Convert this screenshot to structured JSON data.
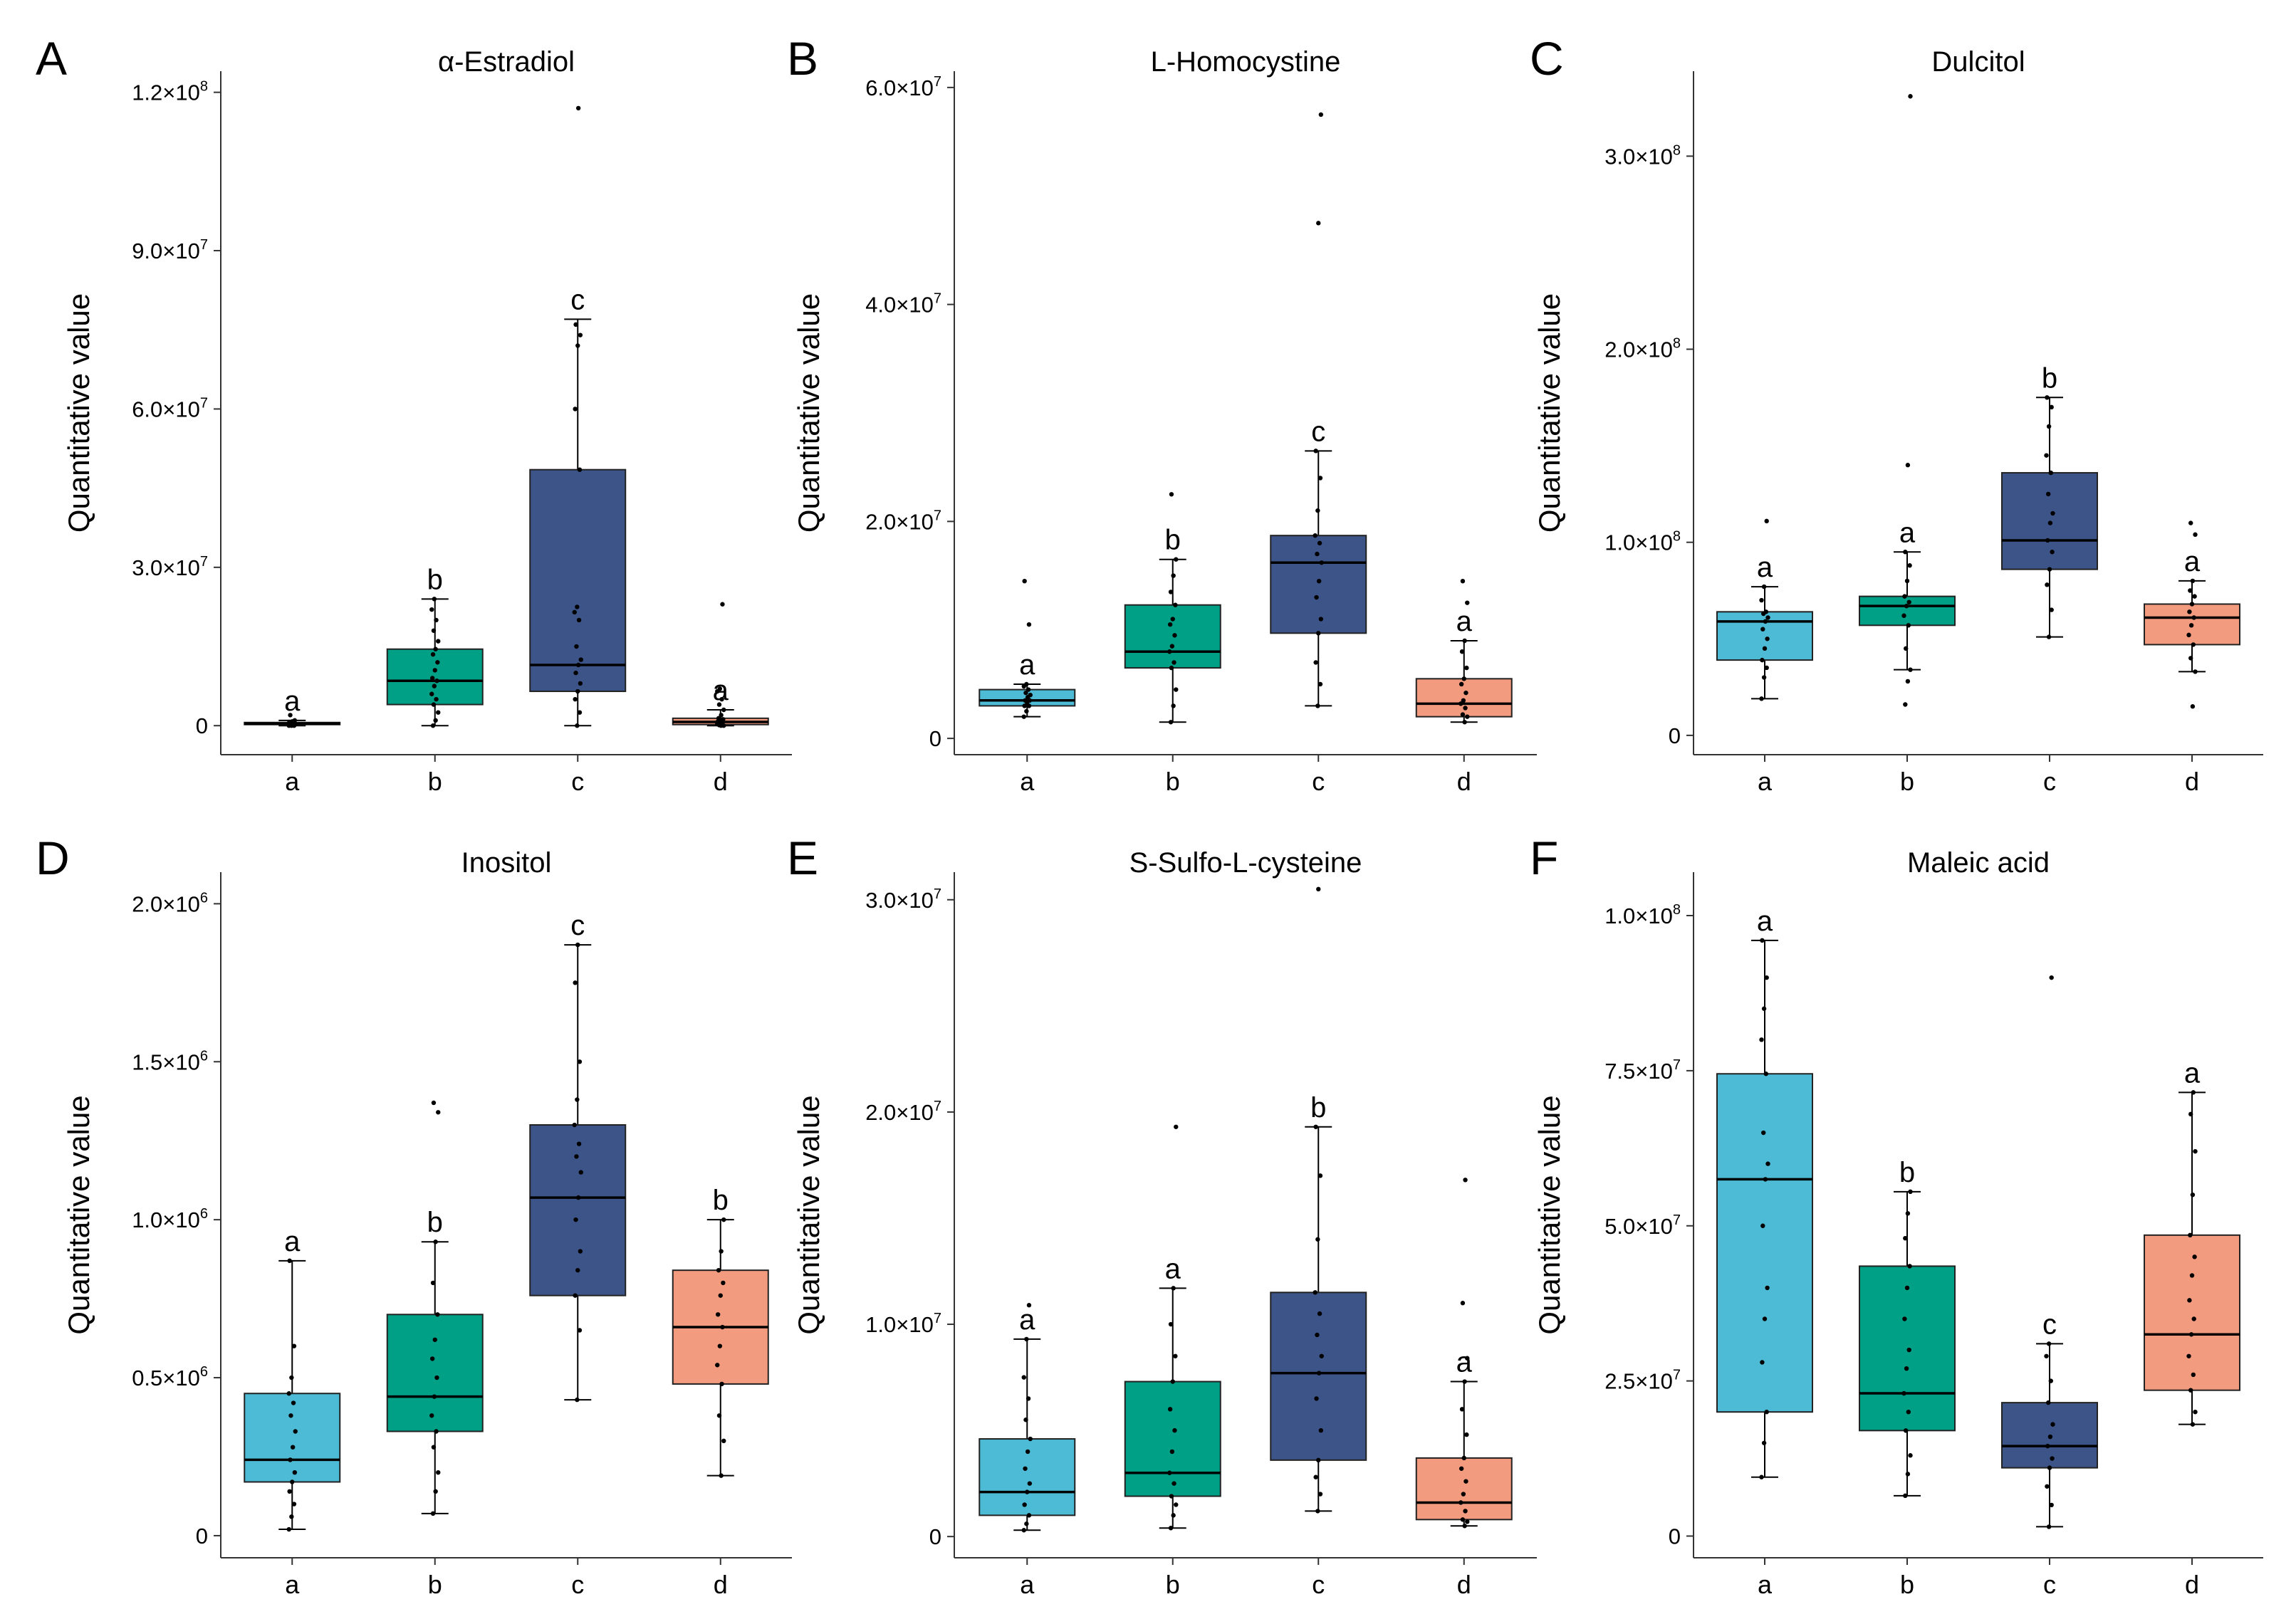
{
  "figure": {
    "group_colors": [
      "#4DBBD5",
      "#00A087",
      "#3C5488",
      "#F39B7F"
    ]
  },
  "chart_data": [
    {
      "type": "box",
      "panel": "A",
      "title": "α-Estradiol",
      "xlabel": "",
      "ylabel": "Quantitative value",
      "categories": [
        "a",
        "b",
        "c",
        "d"
      ],
      "y_ticks": [
        {
          "value": 0,
          "label": "0",
          "mantissa": "0",
          "exponent": ""
        },
        {
          "value": 30000000,
          "label": "3.0×10^7",
          "mantissa": "3.0×10",
          "exponent": "7"
        },
        {
          "value": 60000000,
          "label": "6.0×10^7",
          "mantissa": "6.0×10",
          "exponent": "7"
        },
        {
          "value": 90000000,
          "label": "9.0×10^7",
          "mantissa": "9.0×10",
          "exponent": "7"
        },
        {
          "value": 120000000,
          "label": "1.2×10^8",
          "mantissa": "1.2×10",
          "exponent": "8"
        }
      ],
      "ylim": [
        -5500000,
        124000000
      ],
      "boxes": [
        {
          "group": "a",
          "q1": 200000,
          "median": 400000,
          "q3": 600000,
          "whisker_low": 0,
          "whisker_high": 1000000,
          "sig": "a",
          "points": [
            0,
            0,
            0,
            100000,
            100000,
            200000,
            200000,
            300000,
            300000,
            400000,
            400000,
            500000,
            500000,
            600000,
            700000,
            800000,
            1000000,
            2000000
          ]
        },
        {
          "group": "b",
          "q1": 4000000,
          "median": 8500000,
          "q3": 14500000,
          "whisker_low": 0,
          "whisker_high": 24000000,
          "sig": "b",
          "points": [
            0,
            1000000,
            2500000,
            4000000,
            5000000,
            6000000,
            7500000,
            8500000,
            9000000,
            10500000,
            12000000,
            13500000,
            14500000,
            16000000,
            18000000,
            20000000,
            22000000,
            24000000
          ]
        },
        {
          "group": "c",
          "q1": 6500000,
          "median": 11500000,
          "q3": 48500000,
          "whisker_low": 0,
          "whisker_high": 77000000,
          "sig": "c",
          "points": [
            0,
            2500000,
            5000000,
            6500000,
            8000000,
            10000000,
            11500000,
            12500000,
            15000000,
            20000000,
            21500000,
            22500000,
            48500000,
            60000000,
            72000000,
            74000000,
            76000000,
            117000000
          ]
        },
        {
          "group": "d",
          "q1": 200000,
          "median": 700000,
          "q3": 1400000,
          "whisker_low": 0,
          "whisker_high": 3000000,
          "sig": "a",
          "points": [
            0,
            0,
            100000,
            200000,
            300000,
            500000,
            600000,
            800000,
            1000000,
            1200000,
            1400000,
            2000000,
            3000000,
            4000000,
            5000000,
            6500000,
            7000000,
            23000000
          ]
        }
      ]
    },
    {
      "type": "box",
      "panel": "B",
      "title": "L-Homocystine",
      "xlabel": "",
      "ylabel": "Quantitative value",
      "categories": [
        "a",
        "b",
        "c",
        "d"
      ],
      "y_ticks": [
        {
          "value": 0,
          "label": "0",
          "mantissa": "0",
          "exponent": ""
        },
        {
          "value": 20000000,
          "label": "2.0×10^7",
          "mantissa": "2.0×10",
          "exponent": "7"
        },
        {
          "value": 40000000,
          "label": "4.0×10^7",
          "mantissa": "4.0×10",
          "exponent": "7"
        },
        {
          "value": 60000000,
          "label": "6.0×10^7",
          "mantissa": "6.0×10",
          "exponent": "7"
        }
      ],
      "ylim": [
        -1500000,
        61500000
      ],
      "boxes": [
        {
          "group": "a",
          "q1": 3000000,
          "median": 3500000,
          "q3": 4500000,
          "whisker_low": 2000000,
          "whisker_high": 5000000,
          "sig": "a",
          "points": [
            2000000,
            2500000,
            3000000,
            3000000,
            3200000,
            3500000,
            3500000,
            3800000,
            4000000,
            4200000,
            4500000,
            4800000,
            5000000,
            10500000,
            14500000
          ]
        },
        {
          "group": "b",
          "q1": 6500000,
          "median": 8000000,
          "q3": 12300000,
          "whisker_low": 1500000,
          "whisker_high": 16500000,
          "sig": "b",
          "points": [
            1500000,
            3000000,
            4500000,
            6500000,
            7000000,
            8000000,
            8500000,
            9500000,
            10500000,
            11000000,
            12300000,
            13500000,
            15000000,
            16500000,
            22500000
          ]
        },
        {
          "group": "c",
          "q1": 9700000,
          "median": 16200000,
          "q3": 18700000,
          "whisker_low": 3000000,
          "whisker_high": 26500000,
          "sig": "c",
          "points": [
            3000000,
            5000000,
            7000000,
            9700000,
            11000000,
            13000000,
            14500000,
            16200000,
            17000000,
            18000000,
            18700000,
            21000000,
            24000000,
            26500000,
            47500000,
            57500000
          ]
        },
        {
          "group": "d",
          "q1": 2000000,
          "median": 3200000,
          "q3": 5500000,
          "whisker_low": 1500000,
          "whisker_high": 9000000,
          "sig": "a",
          "points": [
            1500000,
            2000000,
            2200000,
            2800000,
            3200000,
            3500000,
            4200000,
            5000000,
            5500000,
            6500000,
            8000000,
            9000000,
            12500000,
            14500000
          ]
        }
      ]
    },
    {
      "type": "box",
      "panel": "C",
      "title": "Dulcitol",
      "xlabel": "",
      "ylabel": "Quantitative value",
      "categories": [
        "a",
        "b",
        "c",
        "d"
      ],
      "y_ticks": [
        {
          "value": 0,
          "label": "0",
          "mantissa": "0",
          "exponent": ""
        },
        {
          "value": 100000000,
          "label": "1.0×10^8",
          "mantissa": "1.0×10",
          "exponent": "8"
        },
        {
          "value": 200000000,
          "label": "2.0×10^8",
          "mantissa": "2.0×10",
          "exponent": "8"
        },
        {
          "value": 300000000,
          "label": "3.0×10^8",
          "mantissa": "3.0×10",
          "exponent": "8"
        }
      ],
      "ylim": [
        -10000000,
        344000000
      ],
      "boxes": [
        {
          "group": "a",
          "q1": 39000000,
          "median": 59000000,
          "q3": 64000000,
          "whisker_low": 19000000,
          "whisker_high": 77000000,
          "sig": "a",
          "points": [
            19000000,
            30000000,
            35000000,
            39000000,
            45000000,
            50000000,
            55000000,
            59000000,
            61000000,
            63000000,
            64000000,
            70000000,
            77000000,
            111000000
          ]
        },
        {
          "group": "b",
          "q1": 57000000,
          "median": 67000000,
          "q3": 72000000,
          "whisker_low": 34000000,
          "whisker_high": 95000000,
          "sig": "a",
          "points": [
            16000000,
            28000000,
            34000000,
            45000000,
            57000000,
            62000000,
            67000000,
            69000000,
            72000000,
            80000000,
            88000000,
            95000000,
            140000000,
            331000000
          ]
        },
        {
          "group": "c",
          "q1": 86000000,
          "median": 101000000,
          "q3": 136000000,
          "whisker_low": 51000000,
          "whisker_high": 175000000,
          "sig": "b",
          "points": [
            51000000,
            65000000,
            78000000,
            86000000,
            95000000,
            101000000,
            110000000,
            115000000,
            125000000,
            136000000,
            145000000,
            160000000,
            170000000,
            175000000
          ]
        },
        {
          "group": "d",
          "q1": 47000000,
          "median": 61000000,
          "q3": 68000000,
          "whisker_low": 33000000,
          "whisker_high": 80000000,
          "sig": "a",
          "points": [
            15000000,
            33000000,
            40000000,
            47000000,
            52000000,
            57000000,
            61000000,
            64000000,
            68000000,
            72000000,
            75000000,
            80000000,
            104000000,
            110000000
          ]
        }
      ]
    },
    {
      "type": "box",
      "panel": "D",
      "title": "Inositol",
      "xlabel": "",
      "ylabel": "Quantitative value",
      "categories": [
        "a",
        "b",
        "c",
        "d"
      ],
      "y_ticks": [
        {
          "value": 0,
          "label": "0",
          "mantissa": "0",
          "exponent": ""
        },
        {
          "value": 500000,
          "label": "0.5×10^6",
          "mantissa": "0.5×10",
          "exponent": "6"
        },
        {
          "value": 1000000,
          "label": "1.0×10^6",
          "mantissa": "1.0×10",
          "exponent": "6"
        },
        {
          "value": 1500000,
          "label": "1.5×10^6",
          "mantissa": "1.5×10",
          "exponent": "6"
        },
        {
          "value": 2000000,
          "label": "2.0×10^6",
          "mantissa": "2.0×10",
          "exponent": "6"
        }
      ],
      "ylim": [
        -70000,
        2100000
      ],
      "boxes": [
        {
          "group": "a",
          "q1": 170000,
          "median": 240000,
          "q3": 450000,
          "whisker_low": 20000,
          "whisker_high": 870000,
          "sig": "a",
          "points": [
            20000,
            60000,
            100000,
            140000,
            170000,
            200000,
            240000,
            280000,
            330000,
            380000,
            420000,
            450000,
            500000,
            600000,
            870000
          ]
        },
        {
          "group": "b",
          "q1": 330000,
          "median": 440000,
          "q3": 700000,
          "whisker_low": 70000,
          "whisker_high": 930000,
          "sig": "b",
          "points": [
            70000,
            140000,
            200000,
            280000,
            330000,
            380000,
            440000,
            500000,
            560000,
            620000,
            700000,
            800000,
            930000,
            1340000,
            1370000
          ]
        },
        {
          "group": "c",
          "q1": 760000,
          "median": 1070000,
          "q3": 1300000,
          "whisker_low": 430000,
          "whisker_high": 1870000,
          "sig": "c",
          "points": [
            430000,
            650000,
            760000,
            840000,
            900000,
            1000000,
            1070000,
            1150000,
            1200000,
            1240000,
            1300000,
            1380000,
            1500000,
            1750000,
            1870000
          ]
        },
        {
          "group": "d",
          "q1": 480000,
          "median": 660000,
          "q3": 840000,
          "whisker_low": 190000,
          "whisker_high": 1000000,
          "sig": "b",
          "points": [
            190000,
            300000,
            380000,
            480000,
            540000,
            600000,
            660000,
            700000,
            760000,
            800000,
            840000,
            900000,
            1000000
          ]
        }
      ]
    },
    {
      "type": "box",
      "panel": "E",
      "title": "S-Sulfo-L-cysteine",
      "xlabel": "",
      "ylabel": "Quantitative value",
      "categories": [
        "a",
        "b",
        "c",
        "d"
      ],
      "y_ticks": [
        {
          "value": 0,
          "label": "0",
          "mantissa": "0",
          "exponent": ""
        },
        {
          "value": 10000000,
          "label": "1.0×10^7",
          "mantissa": "1.0×10",
          "exponent": "7"
        },
        {
          "value": 20000000,
          "label": "2.0×10^7",
          "mantissa": "2.0×10",
          "exponent": "7"
        },
        {
          "value": 30000000,
          "label": "3.0×10^7",
          "mantissa": "3.0×10",
          "exponent": "7"
        }
      ],
      "ylim": [
        -1000000,
        31300000
      ],
      "boxes": [
        {
          "group": "a",
          "q1": 1000000,
          "median": 2100000,
          "q3": 4600000,
          "whisker_low": 300000,
          "whisker_high": 9300000,
          "sig": "a",
          "points": [
            300000,
            600000,
            1000000,
            1500000,
            2100000,
            2500000,
            3200000,
            4000000,
            4600000,
            5500000,
            6500000,
            7500000,
            9300000,
            10900000
          ]
        },
        {
          "group": "b",
          "q1": 1900000,
          "median": 3000000,
          "q3": 7300000,
          "whisker_low": 400000,
          "whisker_high": 11700000,
          "sig": "a",
          "points": [
            400000,
            1000000,
            1500000,
            1900000,
            2500000,
            3000000,
            4000000,
            5000000,
            6000000,
            7300000,
            8500000,
            10000000,
            11700000,
            19300000
          ]
        },
        {
          "group": "c",
          "q1": 3600000,
          "median": 7700000,
          "q3": 11500000,
          "whisker_low": 1200000,
          "whisker_high": 19300000,
          "sig": "b",
          "points": [
            1200000,
            2000000,
            2800000,
            3600000,
            5000000,
            6500000,
            7700000,
            8500000,
            9500000,
            10500000,
            11500000,
            14000000,
            17000000,
            19300000,
            30500000
          ]
        },
        {
          "group": "d",
          "q1": 800000,
          "median": 1600000,
          "q3": 3700000,
          "whisker_low": 500000,
          "whisker_high": 7300000,
          "sig": "a",
          "points": [
            500000,
            700000,
            800000,
            1200000,
            1600000,
            2000000,
            2600000,
            3200000,
            3700000,
            4800000,
            6000000,
            7300000,
            8400000,
            11000000,
            16800000
          ]
        }
      ]
    },
    {
      "type": "box",
      "panel": "F",
      "title": "Maleic acid",
      "xlabel": "",
      "ylabel": "Quantitative value",
      "categories": [
        "a",
        "b",
        "c",
        "d"
      ],
      "y_ticks": [
        {
          "value": 0,
          "label": "0",
          "mantissa": "0",
          "exponent": ""
        },
        {
          "value": 25000000,
          "label": "2.5×10^7",
          "mantissa": "2.5×10",
          "exponent": "7"
        },
        {
          "value": 50000000,
          "label": "5.0×10^7",
          "mantissa": "5.0×10",
          "exponent": "7"
        },
        {
          "value": 75000000,
          "label": "7.5×10^7",
          "mantissa": "7.5×10",
          "exponent": "7"
        },
        {
          "value": 100000000,
          "label": "1.0×10^8",
          "mantissa": "1.0×10",
          "exponent": "8"
        }
      ],
      "ylim": [
        -3500000,
        107000000
      ],
      "boxes": [
        {
          "group": "a",
          "q1": 20000000,
          "median": 57500000,
          "q3": 74500000,
          "whisker_low": 9500000,
          "whisker_high": 96000000,
          "sig": "a",
          "points": [
            9500000,
            15000000,
            20000000,
            28000000,
            35000000,
            40000000,
            50000000,
            57500000,
            60000000,
            65000000,
            74500000,
            80000000,
            85000000,
            90000000,
            96000000
          ]
        },
        {
          "group": "b",
          "q1": 17000000,
          "median": 23000000,
          "q3": 43500000,
          "whisker_low": 6500000,
          "whisker_high": 55500000,
          "sig": "b",
          "points": [
            6500000,
            10000000,
            13000000,
            17000000,
            20000000,
            23000000,
            27000000,
            30000000,
            35000000,
            40000000,
            43500000,
            48000000,
            52000000,
            55500000
          ]
        },
        {
          "group": "c",
          "q1": 11000000,
          "median": 14500000,
          "q3": 21500000,
          "whisker_low": 1500000,
          "whisker_high": 31000000,
          "sig": "c",
          "points": [
            1500000,
            5000000,
            8000000,
            11000000,
            12500000,
            14500000,
            16000000,
            18000000,
            21500000,
            25000000,
            29000000,
            31000000,
            90000000
          ]
        },
        {
          "group": "d",
          "q1": 23500000,
          "median": 32500000,
          "q3": 48500000,
          "whisker_low": 18000000,
          "whisker_high": 71500000,
          "sig": "a",
          "points": [
            18000000,
            20000000,
            23500000,
            26000000,
            29000000,
            32500000,
            35000000,
            38000000,
            42000000,
            45000000,
            48500000,
            55000000,
            62000000,
            68000000,
            71500000
          ]
        }
      ]
    }
  ]
}
